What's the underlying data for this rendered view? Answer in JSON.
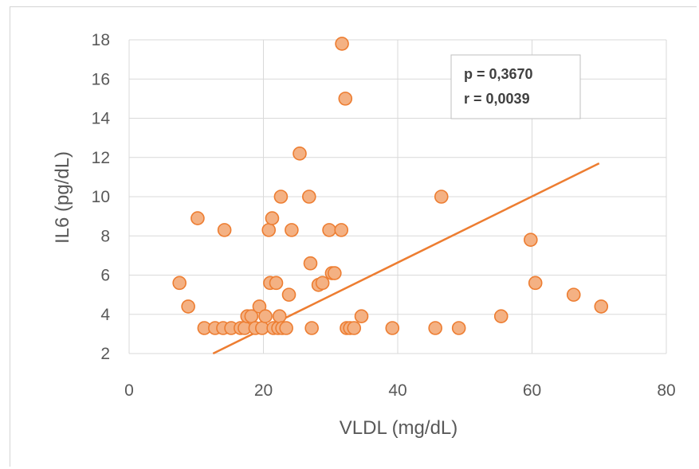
{
  "chart_data": {
    "type": "scatter",
    "title": "",
    "xlabel": "VLDL (mg/dL)",
    "ylabel": "IL6 (pg/dL)",
    "xlim": [
      0,
      80
    ],
    "ylim": [
      2,
      18
    ],
    "xticks": [
      0,
      20,
      40,
      60,
      80
    ],
    "yticks": [
      2,
      4,
      6,
      8,
      10,
      12,
      14,
      16,
      18
    ],
    "grid": true,
    "colors": {
      "marker_fill": "#f4b183",
      "marker_edge": "#ed7d31",
      "trendline": "#ed7d31",
      "grid": "#d9d9d9"
    },
    "annotation": {
      "p_line": "p = 0,3670",
      "r_line": "r = 0,0039"
    },
    "trendline": {
      "x": [
        12.5,
        70.0
      ],
      "y": [
        2.0,
        11.7
      ]
    },
    "points": [
      [
        7.5,
        5.6
      ],
      [
        8.8,
        4.4
      ],
      [
        10.2,
        8.9
      ],
      [
        11.2,
        3.3
      ],
      [
        12.8,
        3.3
      ],
      [
        14.0,
        3.3
      ],
      [
        14.2,
        8.3
      ],
      [
        15.2,
        3.3
      ],
      [
        16.6,
        3.3
      ],
      [
        17.2,
        3.3
      ],
      [
        17.6,
        3.9
      ],
      [
        18.2,
        3.9
      ],
      [
        18.8,
        3.3
      ],
      [
        19.4,
        4.4
      ],
      [
        19.8,
        3.3
      ],
      [
        20.3,
        3.9
      ],
      [
        20.8,
        8.3
      ],
      [
        21.0,
        5.6
      ],
      [
        21.3,
        8.9
      ],
      [
        21.5,
        3.3
      ],
      [
        21.9,
        5.6
      ],
      [
        22.2,
        3.3
      ],
      [
        22.4,
        3.9
      ],
      [
        22.6,
        10.0
      ],
      [
        22.8,
        3.3
      ],
      [
        23.4,
        3.3
      ],
      [
        23.8,
        5.0
      ],
      [
        24.2,
        8.3
      ],
      [
        25.4,
        12.2
      ],
      [
        26.8,
        10.0
      ],
      [
        27.0,
        6.6
      ],
      [
        27.2,
        3.3
      ],
      [
        28.2,
        5.5
      ],
      [
        28.8,
        5.6
      ],
      [
        29.8,
        8.3
      ],
      [
        30.2,
        6.1
      ],
      [
        30.6,
        6.1
      ],
      [
        31.6,
        8.3
      ],
      [
        31.7,
        17.8
      ],
      [
        32.2,
        15.0
      ],
      [
        32.4,
        3.3
      ],
      [
        32.9,
        3.3
      ],
      [
        33.5,
        3.3
      ],
      [
        34.6,
        3.9
      ],
      [
        39.2,
        3.3
      ],
      [
        45.6,
        3.3
      ],
      [
        46.5,
        10.0
      ],
      [
        49.1,
        3.3
      ],
      [
        55.4,
        3.9
      ],
      [
        59.8,
        7.8
      ],
      [
        60.5,
        5.6
      ],
      [
        66.2,
        5.0
      ],
      [
        70.3,
        4.4
      ]
    ]
  }
}
